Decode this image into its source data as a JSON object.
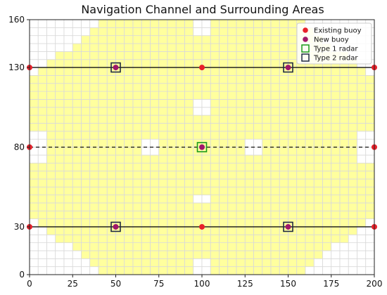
{
  "chart_data": {
    "type": "scatter",
    "title": "Navigation Channel and Surrounding Areas",
    "xlabel": "",
    "ylabel": "",
    "xlim": [
      0,
      200
    ],
    "ylim": [
      0,
      160
    ],
    "x_ticks": [
      "0",
      "25",
      "50",
      "75",
      "100",
      "125",
      "150",
      "175",
      "200"
    ],
    "y_ticks": [
      "0",
      "30",
      "80",
      "130",
      "160"
    ],
    "grid_cell_size": 5,
    "grid": "coverage cells",
    "lines": [
      {
        "y": 130,
        "x": [
          0,
          200
        ],
        "style": "solid"
      },
      {
        "y": 80,
        "x": [
          0,
          200
        ],
        "style": "dashed"
      },
      {
        "y": 30,
        "x": [
          0,
          200
        ],
        "style": "solid"
      }
    ],
    "series": [
      {
        "name": "Existing buoy",
        "marker": "circle",
        "color": "#e8202a",
        "points": [
          [
            0,
            130
          ],
          [
            100,
            130
          ],
          [
            200,
            130
          ],
          [
            0,
            80
          ],
          [
            200,
            80
          ],
          [
            0,
            30
          ],
          [
            100,
            30
          ],
          [
            200,
            30
          ]
        ]
      },
      {
        "name": "New buoy",
        "marker": "circle",
        "color": "#a0186a",
        "points": [
          [
            50,
            130
          ],
          [
            150,
            130
          ],
          [
            100,
            80
          ],
          [
            50,
            30
          ],
          [
            150,
            30
          ]
        ]
      },
      {
        "name": "Type 1 radar",
        "marker": "square-open",
        "color": "#1a9a1a",
        "points": [
          [
            100,
            80
          ]
        ]
      },
      {
        "name": "Type 2 radar",
        "marker": "square-open",
        "color": "#1f2a44",
        "points": [
          [
            50,
            130
          ],
          [
            150,
            130
          ],
          [
            50,
            30
          ],
          [
            150,
            30
          ]
        ]
      }
    ],
    "coverage_color": "#ffff9e",
    "legend_position": "top-right"
  }
}
